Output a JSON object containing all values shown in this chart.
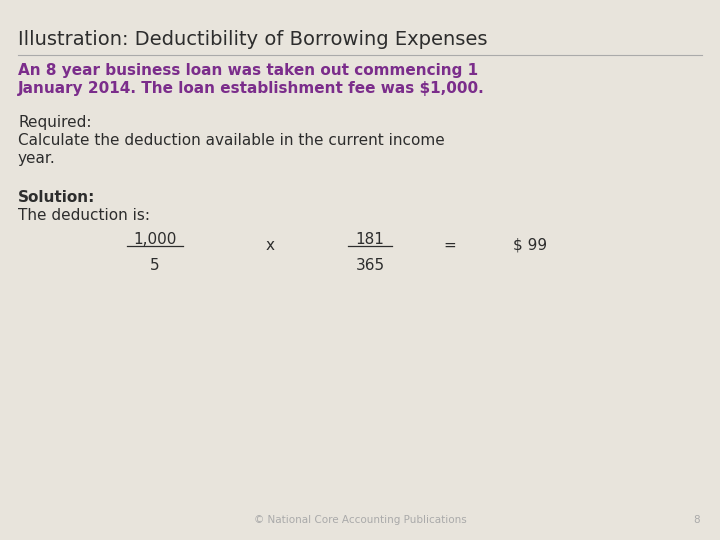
{
  "background_color": "#e8e4dc",
  "title": "Illustration: Deductibility of Borrowing Expenses",
  "title_color": "#2d2d2d",
  "title_fontsize": 14,
  "highlight_line1": "An 8 year business loan was taken out commencing 1",
  "highlight_line2": "January 2014. The loan establishment fee was $1,000.",
  "highlight_color": "#7b2d8b",
  "highlight_fontsize": 11,
  "required_label": "Required:",
  "required_text_line1": "Calculate the deduction available in the current income",
  "required_text_line2": "year.",
  "body_fontsize": 11,
  "body_color": "#2d2d2d",
  "solution_label": "Solution:",
  "solution_text": "The deduction is:",
  "solution_fontsize": 11,
  "numerator1": "1,000",
  "denominator1": "5",
  "operator": "x",
  "numerator2": "181",
  "denominator2": "365",
  "equals": "=",
  "result": "$ 99",
  "formula_fontsize": 11,
  "footer_text": "© National Core Accounting Publications",
  "footer_page": "8",
  "footer_fontsize": 7.5,
  "footer_color": "#aaaaaa"
}
